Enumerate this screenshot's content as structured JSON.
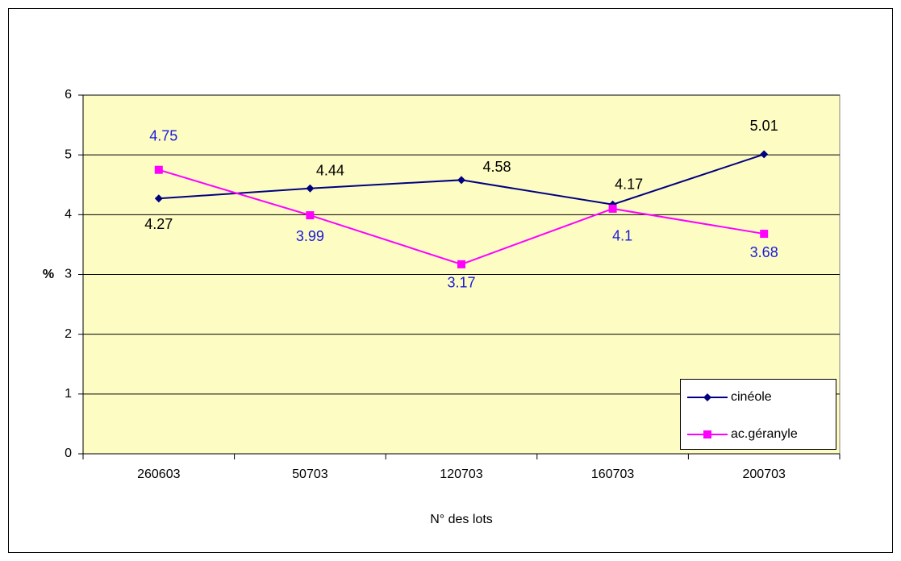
{
  "chart_data": {
    "type": "line",
    "categories": [
      "260603",
      "50703",
      "120703",
      "160703",
      "200703"
    ],
    "series": [
      {
        "name": "cinéole",
        "color": "#000080",
        "label_color": "#000000",
        "marker": "diamond",
        "values": [
          4.27,
          4.44,
          4.58,
          4.17,
          5.01
        ]
      },
      {
        "name": "ac.géranyle",
        "color": "#ff00ff",
        "label_color": "#1a1adb",
        "marker": "square",
        "values": [
          4.75,
          3.99,
          3.17,
          4.1,
          3.68
        ]
      }
    ],
    "ylim": [
      0,
      6
    ],
    "yticks": [
      0,
      1,
      2,
      3,
      4,
      5,
      6
    ],
    "grid": true,
    "y_label": "%",
    "x_label": "N° des lots",
    "legend": "lower right"
  }
}
